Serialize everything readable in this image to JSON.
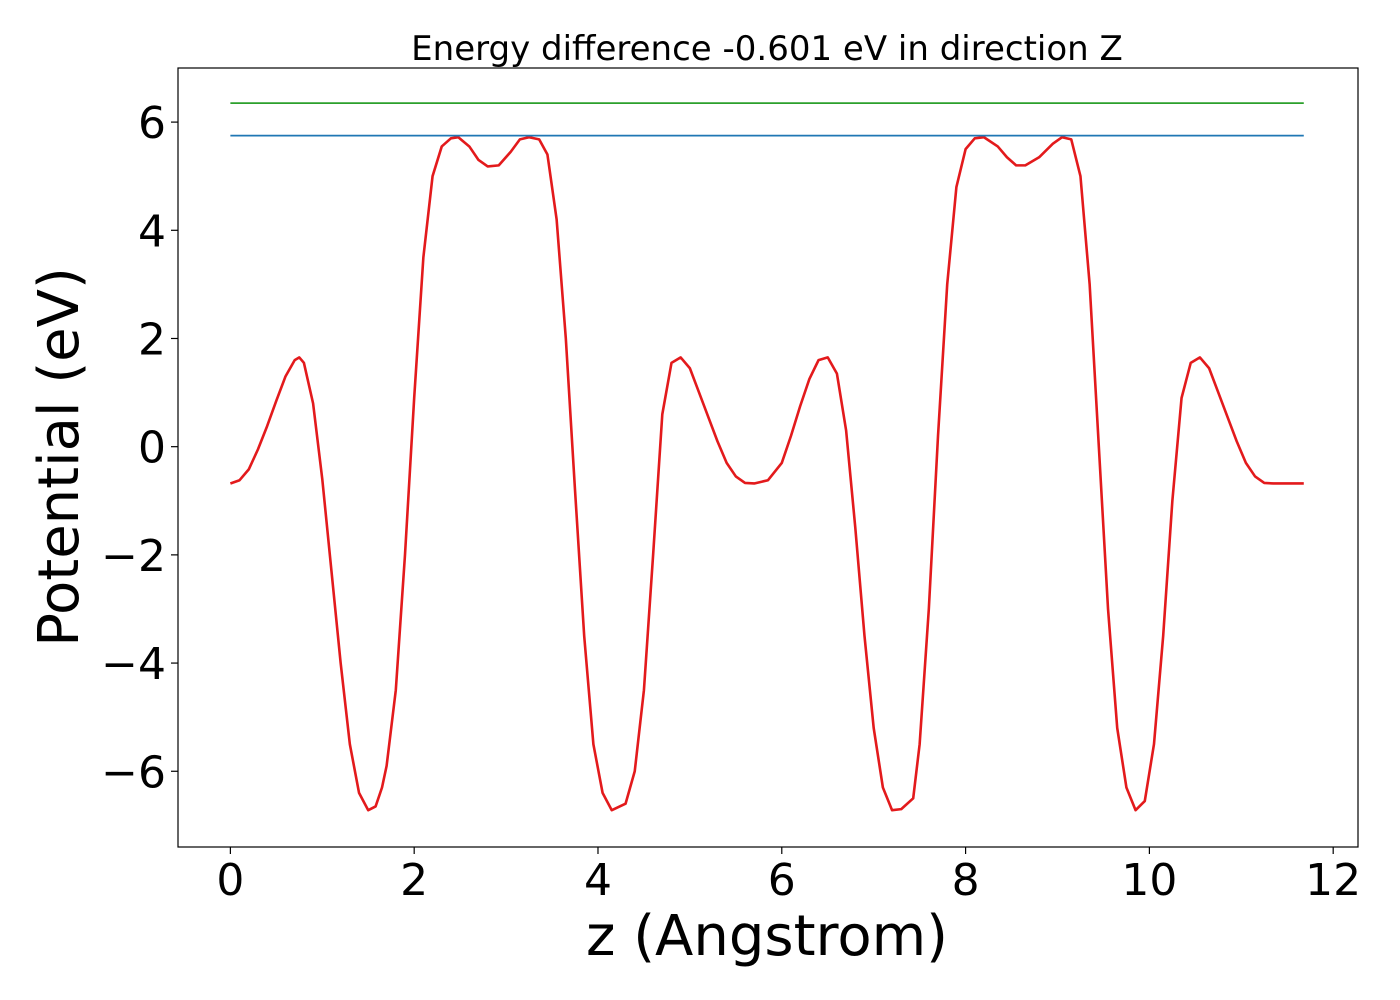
{
  "chart_data": {
    "type": "line",
    "title": "Energy difference -0.601 eV in direction Z",
    "xlabel": "z (Angstrom)",
    "ylabel": "Potential (eV)",
    "xlim": [
      -0.57,
      12.27
    ],
    "ylim": [
      -7.4,
      7.0
    ],
    "xticks": [
      0,
      2,
      4,
      6,
      8,
      10,
      12
    ],
    "xtick_labels": [
      "0",
      "2",
      "4",
      "6",
      "8",
      "10",
      "12"
    ],
    "yticks": [
      -6,
      -4,
      -2,
      0,
      2,
      4,
      6
    ],
    "ytick_labels": [
      "−6",
      "−4",
      "−2",
      "0",
      "2",
      "4",
      "6"
    ],
    "grid": false,
    "legend": "none",
    "series": [
      {
        "color": "#e31a1c",
        "x": [
          0.0,
          0.1,
          0.2,
          0.3,
          0.4,
          0.5,
          0.6,
          0.7,
          0.75,
          0.8,
          0.9,
          1.0,
          1.1,
          1.2,
          1.3,
          1.4,
          1.5,
          1.58,
          1.65,
          1.7,
          1.8,
          1.9,
          2.0,
          2.1,
          2.2,
          2.3,
          2.4,
          2.48,
          2.6,
          2.7,
          2.8,
          2.92,
          3.05,
          3.15,
          3.25,
          3.36,
          3.45,
          3.55,
          3.65,
          3.75,
          3.85,
          3.95,
          4.05,
          4.15,
          4.3,
          4.4,
          4.5,
          4.6,
          4.7,
          4.8,
          4.9,
          5.0,
          5.1,
          5.2,
          5.3,
          5.4,
          5.5,
          5.6,
          5.7,
          5.85,
          6.0,
          6.1,
          6.2,
          6.3,
          6.4,
          6.5,
          6.6,
          6.7,
          6.8,
          6.9,
          7.0,
          7.1,
          7.2,
          7.3,
          7.43,
          7.5,
          7.6,
          7.7,
          7.8,
          7.9,
          8.0,
          8.1,
          8.2,
          8.35,
          8.45,
          8.55,
          8.65,
          8.8,
          8.95,
          9.05,
          9.15,
          9.25,
          9.35,
          9.45,
          9.55,
          9.65,
          9.75,
          9.85,
          9.95,
          10.05,
          10.15,
          10.25,
          10.35,
          10.45,
          10.55,
          10.65,
          10.75,
          10.85,
          10.95,
          11.05,
          11.15,
          11.25,
          11.35,
          11.45,
          11.55,
          11.68
        ],
        "y": [
          -0.68,
          -0.62,
          -0.42,
          -0.05,
          0.38,
          0.85,
          1.3,
          1.6,
          1.65,
          1.55,
          0.8,
          -0.6,
          -2.3,
          -4.0,
          -5.5,
          -6.4,
          -6.72,
          -6.65,
          -6.3,
          -5.9,
          -4.5,
          -2.0,
          0.9,
          3.5,
          5.0,
          5.55,
          5.7,
          5.72,
          5.55,
          5.3,
          5.18,
          5.2,
          5.45,
          5.68,
          5.72,
          5.68,
          5.4,
          4.2,
          2.0,
          -0.8,
          -3.5,
          -5.5,
          -6.4,
          -6.72,
          -6.6,
          -6.0,
          -4.5,
          -2.0,
          0.6,
          1.55,
          1.65,
          1.45,
          1.0,
          0.55,
          0.1,
          -0.3,
          -0.55,
          -0.67,
          -0.68,
          -0.62,
          -0.3,
          0.2,
          0.75,
          1.25,
          1.6,
          1.65,
          1.35,
          0.3,
          -1.5,
          -3.5,
          -5.2,
          -6.3,
          -6.72,
          -6.7,
          -6.5,
          -5.5,
          -3.0,
          0.2,
          3.0,
          4.8,
          5.5,
          5.7,
          5.72,
          5.55,
          5.35,
          5.2,
          5.2,
          5.35,
          5.6,
          5.72,
          5.68,
          5.0,
          3.0,
          0.0,
          -3.0,
          -5.2,
          -6.3,
          -6.72,
          -6.55,
          -5.5,
          -3.5,
          -1.0,
          0.9,
          1.55,
          1.65,
          1.45,
          1.0,
          0.55,
          0.1,
          -0.3,
          -0.55,
          -0.67,
          -0.68,
          -0.68,
          -0.68,
          -0.68
        ]
      },
      {
        "color": "#1f77b4",
        "x": [
          0,
          11.68
        ],
        "y": [
          5.75,
          5.75
        ]
      },
      {
        "color": "#2ca02c",
        "x": [
          0,
          11.68
        ],
        "y": [
          6.35,
          6.35
        ]
      }
    ]
  }
}
